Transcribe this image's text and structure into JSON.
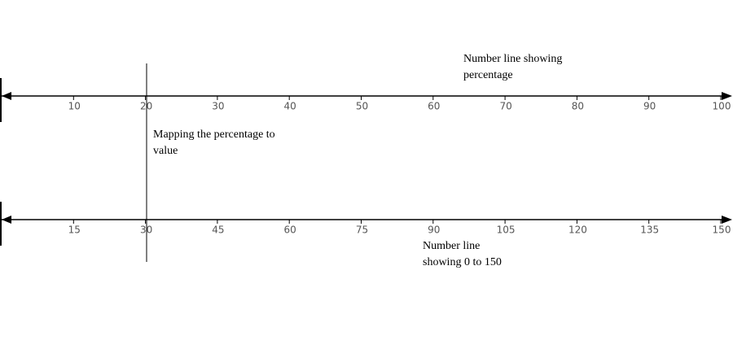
{
  "number_lines": [
    {
      "label": "Number line showing percentage",
      "ticks": [
        10,
        20,
        30,
        40,
        50,
        60,
        70,
        80,
        90,
        100
      ]
    },
    {
      "label": "Number line showing 0 to 150",
      "ticks": [
        15,
        30,
        45,
        60,
        75,
        90,
        105,
        120,
        135,
        150
      ]
    }
  ],
  "mapping": {
    "label": "Mapping the percentage to value"
  }
}
